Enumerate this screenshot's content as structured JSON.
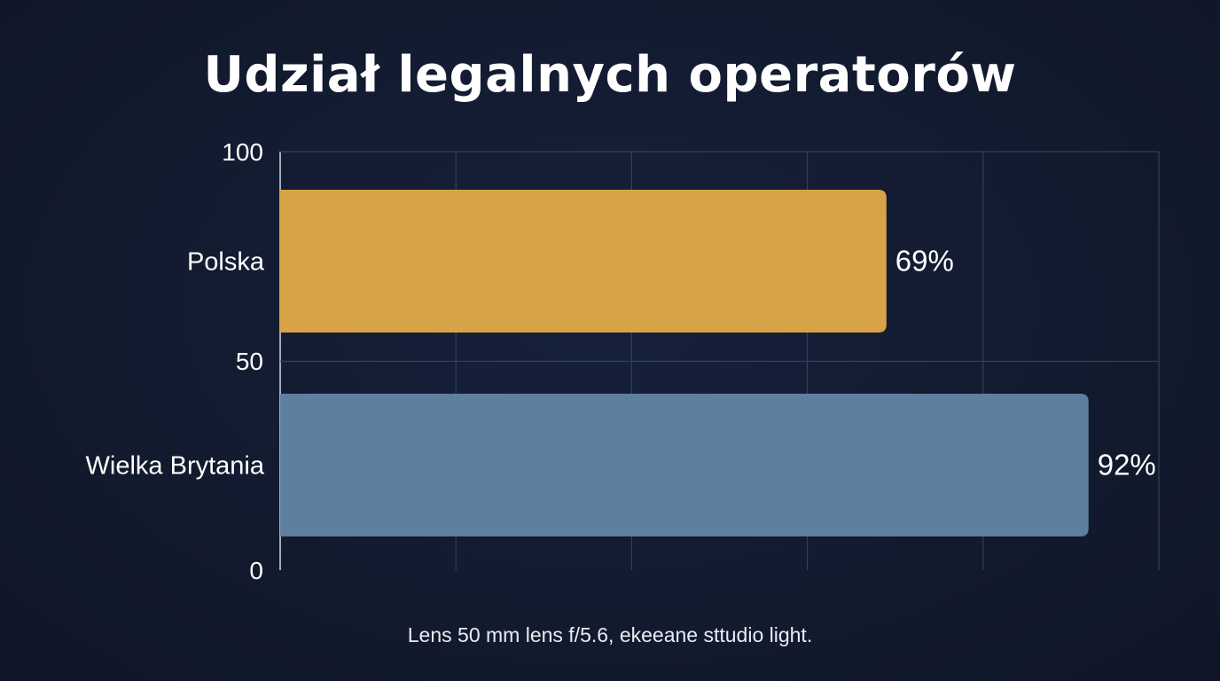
{
  "title": "Udział legalnych operatorów",
  "caption": "Lens 50 mm lens f/5.6, ekeeane sttudio light.",
  "chart_data": {
    "type": "bar",
    "orientation": "horizontal",
    "title": "Udział legalnych operatorów",
    "categories": [
      "Polska",
      "Wielka Brytania"
    ],
    "values": [
      69,
      92
    ],
    "value_labels": [
      "69%",
      "92%"
    ],
    "bar_colors": [
      "#d8a247",
      "#5e7f9e"
    ],
    "xlim": [
      0,
      100
    ],
    "y_tick_labels": [
      "100",
      "50",
      "0"
    ],
    "grid": true,
    "legend": "none"
  },
  "colors": {
    "background": "#131c32",
    "grid": "#33405a",
    "text": "#ffffff"
  }
}
